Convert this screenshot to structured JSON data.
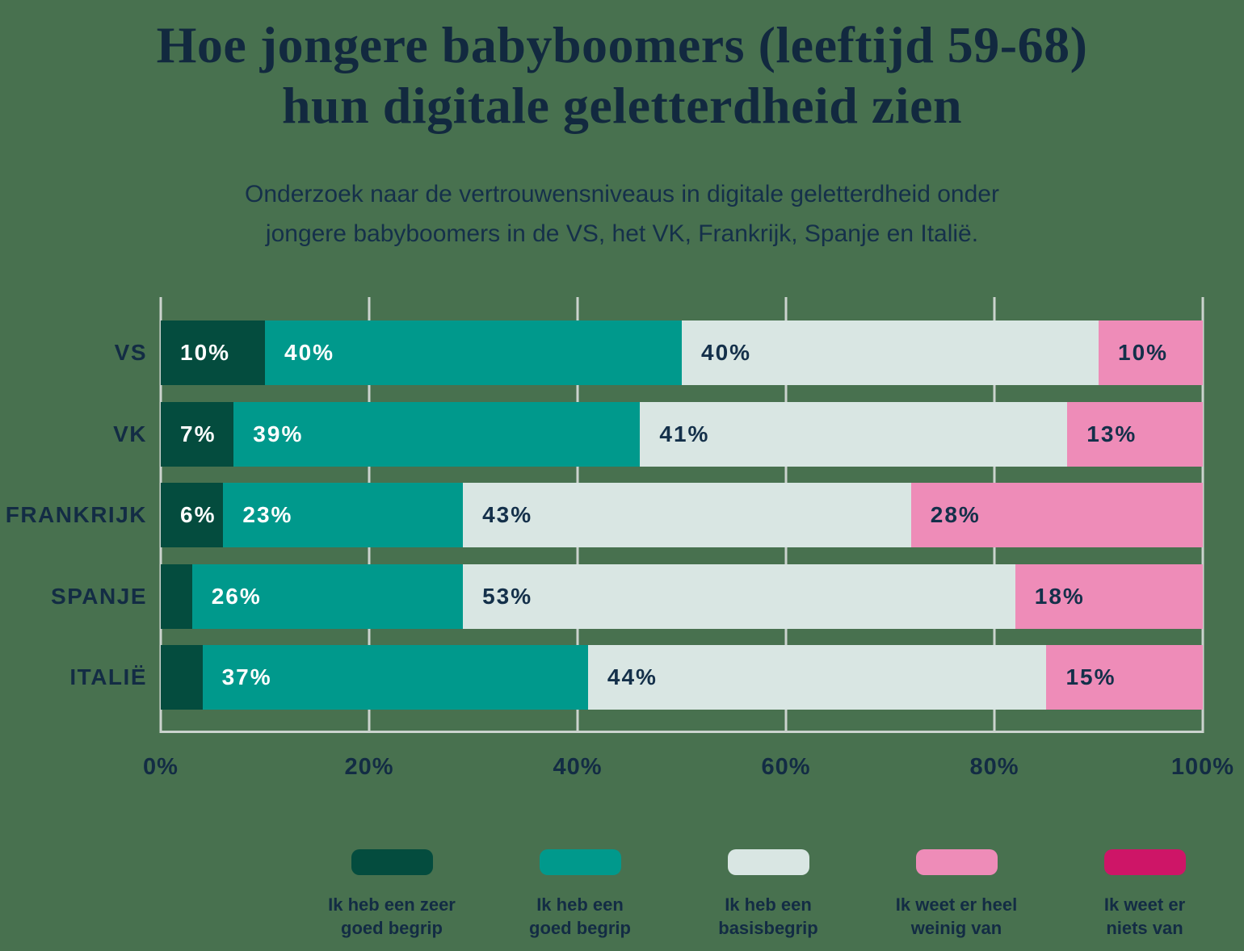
{
  "title": {
    "line1": "Hoe jongere babyboomers (leeftijd 59-68)",
    "line2": "hun digitale geletterdheid zien"
  },
  "subtitle": {
    "line1": "Onderzoek naar de vertrouwensniveaus in digitale geletterdheid onder",
    "line2": "jongere babyboomers in de VS, het VK, Frankrijk, Spanje en Italië."
  },
  "colors": {
    "background": "#48714f",
    "gridline": "#cbd3ce",
    "ink": "#132c44",
    "white": "#ffffff",
    "very_good": "#044c3e",
    "good": "#00998c",
    "basic": "#d9e6e3",
    "very_little": "#ee8cb8",
    "nothing": "#ce1567"
  },
  "chart_data": {
    "type": "bar",
    "stacked": true,
    "orientation": "horizontal",
    "title": "Hoe jongere babyboomers (leeftijd 59-68) hun digitale geletterdheid zien",
    "subtitle": "Onderzoek naar de vertrouwensniveaus in digitale geletterdheid onder jongere babyboomers in de VS, het VK, Frankrijk, Spanje en Italië.",
    "categories": [
      "VS",
      "VK",
      "FRANKRIJK",
      "SPANJE",
      "ITALIË"
    ],
    "series": [
      {
        "name": "Ik heb een zeer goed begrip",
        "color": "#044c3e",
        "values": [
          10,
          7,
          6,
          3,
          4
        ]
      },
      {
        "name": "Ik heb een goed begrip",
        "color": "#00998c",
        "values": [
          40,
          39,
          23,
          26,
          37
        ]
      },
      {
        "name": "Ik heb een basisbegrip",
        "color": "#d9e6e3",
        "values": [
          40,
          41,
          43,
          53,
          44
        ]
      },
      {
        "name": "Ik weet er heel weinig van",
        "color": "#ee8cb8",
        "values": [
          10,
          13,
          28,
          18,
          15
        ]
      },
      {
        "name": "Ik weet er niets van",
        "color": "#ce1567",
        "values": [
          0,
          0,
          0,
          0,
          0
        ]
      }
    ],
    "xlim": [
      0,
      100
    ],
    "x_ticks": [
      "0%",
      "20%",
      "40%",
      "60%",
      "80%",
      "100%"
    ],
    "grid": true,
    "legend_position": "bottom"
  },
  "rows": [
    {
      "label": "VS",
      "segments": [
        {
          "value": 10,
          "text": "10%",
          "color": "#044c3e"
        },
        {
          "value": 40,
          "text": "40%",
          "color": "#00998c"
        },
        {
          "value": 40,
          "text": "40%",
          "color": "#d9e6e3"
        },
        {
          "value": 10,
          "text": "10%",
          "color": "#ee8cb8"
        }
      ]
    },
    {
      "label": "VK",
      "segments": [
        {
          "value": 7,
          "text": "7%",
          "color": "#044c3e"
        },
        {
          "value": 39,
          "text": "39%",
          "color": "#00998c"
        },
        {
          "value": 41,
          "text": "41%",
          "color": "#d9e6e3"
        },
        {
          "value": 13,
          "text": "13%",
          "color": "#ee8cb8"
        }
      ]
    },
    {
      "label": "FRANKRIJK",
      "segments": [
        {
          "value": 6,
          "text": "6%",
          "color": "#044c3e"
        },
        {
          "value": 23,
          "text": "23%",
          "color": "#00998c"
        },
        {
          "value": 43,
          "text": "43%",
          "color": "#d9e6e3"
        },
        {
          "value": 28,
          "text": "28%",
          "color": "#ee8cb8"
        }
      ]
    },
    {
      "label": "SPANJE",
      "segments": [
        {
          "value": 3,
          "text": "",
          "color": "#044c3e"
        },
        {
          "value": 26,
          "text": "26%",
          "color": "#00998c"
        },
        {
          "value": 53,
          "text": "53%",
          "color": "#d9e6e3"
        },
        {
          "value": 18,
          "text": "18%",
          "color": "#ee8cb8"
        }
      ]
    },
    {
      "label": "ITALIË",
      "segments": [
        {
          "value": 4,
          "text": "",
          "color": "#044c3e"
        },
        {
          "value": 37,
          "text": "37%",
          "color": "#00998c"
        },
        {
          "value": 44,
          "text": "44%",
          "color": "#d9e6e3"
        },
        {
          "value": 15,
          "text": "15%",
          "color": "#ee8cb8"
        }
      ]
    }
  ],
  "axis": {
    "ticks": [
      "0%",
      "20%",
      "40%",
      "60%",
      "80%",
      "100%"
    ]
  },
  "legend": [
    {
      "line1": "Ik heb een zeer",
      "line2": "goed begrip",
      "color": "#044c3e"
    },
    {
      "line1": "Ik heb een",
      "line2": "goed begrip",
      "color": "#00998c"
    },
    {
      "line1": "Ik heb een",
      "line2": "basisbegrip",
      "color": "#d9e6e3"
    },
    {
      "line1": "Ik weet er heel",
      "line2": "weinig van",
      "color": "#ee8cb8"
    },
    {
      "line1": "Ik weet er",
      "line2": "niets van",
      "color": "#ce1567"
    }
  ]
}
